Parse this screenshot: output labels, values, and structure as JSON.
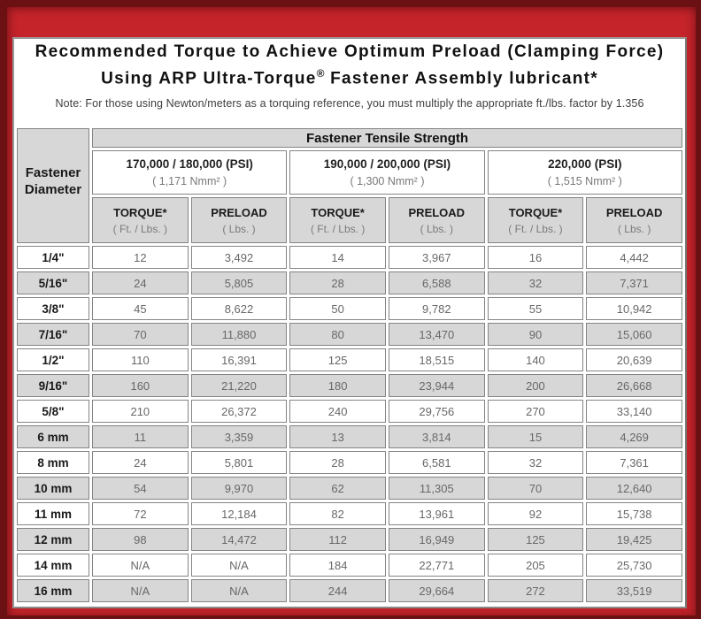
{
  "header": {
    "title_line1": "Recommended Torque to Achieve Optimum Preload (Clamping Force)",
    "title_line2_pre": "Using ARP Ultra-Torque",
    "registered_mark": "®",
    "title_line2_post": " Fastener Assembly lubricant*",
    "note": "Note: For those using Newton/meters as a torquing reference, you must multiply the appropriate ft./lbs. factor by 1.356"
  },
  "colors": {
    "frame_red": "#c5242b",
    "frame_dark_edge": "#6b1013",
    "cell_gray": "#d7d7d7",
    "cell_border": "#848484"
  },
  "table": {
    "corner_line1": "Fastener",
    "corner_line2": "Diameter",
    "group_header": "Fastener Tensile Strength",
    "strength_groups": [
      {
        "psi": "170,000 / 180,000 (PSI)",
        "nmm2": "( 1,171 Nmm² )"
      },
      {
        "psi": "190,000 / 200,000 (PSI)",
        "nmm2": "( 1,300 Nmm² )"
      },
      {
        "psi": "220,000 (PSI)",
        "nmm2": "( 1,515 Nmm² )"
      }
    ],
    "sub_headers": [
      {
        "label": "TORQUE*",
        "unit": "( Ft. / Lbs. )"
      },
      {
        "label": "PRELOAD",
        "unit": "( Lbs. )"
      }
    ],
    "rows": [
      {
        "d": "1/4\"",
        "v": [
          "12",
          "3,492",
          "14",
          "3,967",
          "16",
          "4,442"
        ]
      },
      {
        "d": "5/16\"",
        "v": [
          "24",
          "5,805",
          "28",
          "6,588",
          "32",
          "7,371"
        ]
      },
      {
        "d": "3/8\"",
        "v": [
          "45",
          "8,622",
          "50",
          "9,782",
          "55",
          "10,942"
        ]
      },
      {
        "d": "7/16\"",
        "v": [
          "70",
          "11,880",
          "80",
          "13,470",
          "90",
          "15,060"
        ]
      },
      {
        "d": "1/2\"",
        "v": [
          "110",
          "16,391",
          "125",
          "18,515",
          "140",
          "20,639"
        ]
      },
      {
        "d": "9/16\"",
        "v": [
          "160",
          "21,220",
          "180",
          "23,944",
          "200",
          "26,668"
        ]
      },
      {
        "d": "5/8\"",
        "v": [
          "210",
          "26,372",
          "240",
          "29,756",
          "270",
          "33,140"
        ]
      },
      {
        "d": "6 mm",
        "v": [
          "11",
          "3,359",
          "13",
          "3,814",
          "15",
          "4,269"
        ]
      },
      {
        "d": "8 mm",
        "v": [
          "24",
          "5,801",
          "28",
          "6,581",
          "32",
          "7,361"
        ]
      },
      {
        "d": "10 mm",
        "v": [
          "54",
          "9,970",
          "62",
          "11,305",
          "70",
          "12,640"
        ]
      },
      {
        "d": "11 mm",
        "v": [
          "72",
          "12,184",
          "82",
          "13,961",
          "92",
          "15,738"
        ]
      },
      {
        "d": "12 mm",
        "v": [
          "98",
          "14,472",
          "112",
          "16,949",
          "125",
          "19,425"
        ]
      },
      {
        "d": "14 mm",
        "v": [
          "N/A",
          "N/A",
          "184",
          "22,771",
          "205",
          "25,730"
        ]
      },
      {
        "d": "16 mm",
        "v": [
          "N/A",
          "N/A",
          "244",
          "29,664",
          "272",
          "33,519"
        ]
      }
    ]
  }
}
